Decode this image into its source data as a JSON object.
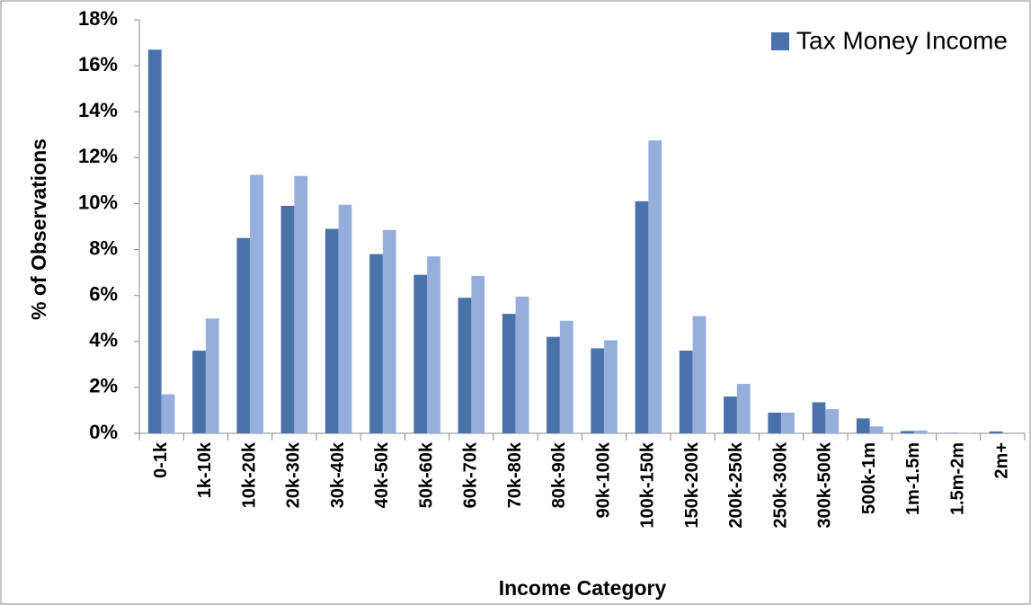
{
  "chart_data": {
    "type": "bar",
    "y_label": "% of Observations",
    "x_label": "Income Category",
    "categories": [
      "0-1k",
      "1k-10k",
      "10k-20k",
      "20k-30k",
      "30k-40k",
      "40k-50k",
      "50k-60k",
      "60k-70k",
      "70k-80k",
      "80k-90k",
      "90k-100k",
      "100k-150k",
      "150k-200k",
      "200k-250k",
      "250k-300k",
      "300k-500k",
      "500k-1m",
      "1m-1.5m",
      "1.5m-2m",
      "2m+"
    ],
    "series": [
      {
        "name": "Tax Money Income",
        "color": "#4a72aa",
        "values": [
          16.7,
          3.6,
          8.5,
          9.9,
          8.9,
          7.8,
          6.9,
          5.9,
          5.2,
          4.2,
          3.7,
          10.1,
          3.6,
          1.6,
          0.9,
          1.35,
          0.65,
          0.1,
          0.02,
          0.08
        ]
      },
      {
        "color": "#96aedb",
        "values": [
          1.7,
          5.0,
          11.25,
          11.2,
          9.95,
          8.85,
          7.7,
          6.85,
          5.95,
          4.9,
          4.05,
          12.75,
          5.1,
          2.15,
          0.9,
          1.05,
          0.3,
          0.12,
          0.02,
          0.0
        ]
      }
    ],
    "ylim": [
      0,
      18
    ],
    "yticks": [
      {
        "value": 0,
        "label": "0%"
      },
      {
        "value": 2,
        "label": "2%"
      },
      {
        "value": 4,
        "label": "4%"
      },
      {
        "value": 6,
        "label": "6%"
      },
      {
        "value": 8,
        "label": "8%"
      },
      {
        "value": 10,
        "label": "10%"
      },
      {
        "value": 12,
        "label": "12%"
      },
      {
        "value": 14,
        "label": "14%"
      },
      {
        "value": 16,
        "label": "16%"
      },
      {
        "value": 18,
        "label": "18%"
      }
    ],
    "grid": false,
    "legend": "top-right"
  }
}
